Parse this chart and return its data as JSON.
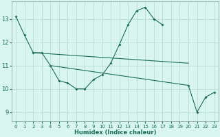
{
  "xlabel": "Humidex (Indice chaleur)",
  "background_color": "#d8f5f0",
  "grid_color": "#b0d8cc",
  "line_color": "#1a6b5a",
  "x": [
    0,
    1,
    2,
    3,
    4,
    5,
    6,
    7,
    8,
    9,
    10,
    11,
    12,
    13,
    14,
    15,
    16,
    17,
    18,
    19,
    20,
    21,
    22,
    23
  ],
  "y_main": [
    13.1,
    12.3,
    11.55,
    11.55,
    11.0,
    10.35,
    10.25,
    10.0,
    10.0,
    10.4,
    10.6,
    11.1,
    11.9,
    12.75,
    13.35,
    13.5,
    13.0,
    12.75,
    null,
    null,
    10.15,
    9.0,
    9.65,
    9.85
  ],
  "trend1_x": [
    2,
    20
  ],
  "trend1_y": [
    11.55,
    11.1
  ],
  "trend2_x": [
    4,
    20
  ],
  "trend2_y": [
    11.0,
    10.15
  ],
  "ylim": [
    8.6,
    13.75
  ],
  "xlim": [
    -0.5,
    23.5
  ],
  "yticks": [
    9,
    10,
    11,
    12,
    13
  ],
  "xticks": [
    0,
    1,
    2,
    3,
    4,
    5,
    6,
    7,
    8,
    9,
    10,
    11,
    12,
    13,
    14,
    15,
    16,
    17,
    18,
    19,
    20,
    21,
    22,
    23
  ]
}
